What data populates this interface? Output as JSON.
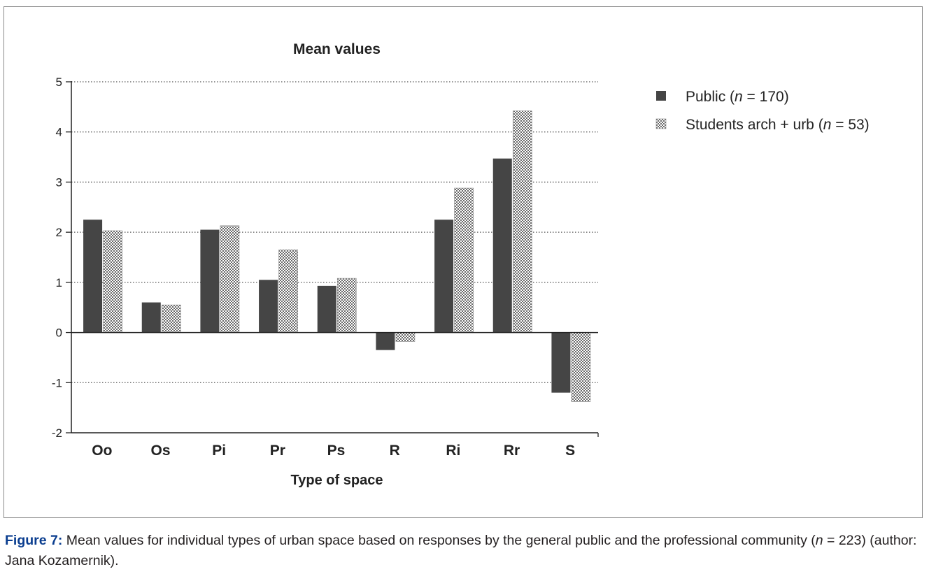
{
  "chart_data": {
    "type": "bar",
    "title": "Mean values",
    "xlabel": "Type of space",
    "ylabel": "",
    "categories": [
      "Oo",
      "Os",
      "Pi",
      "Pr",
      "Ps",
      "R",
      "Ri",
      "Rr",
      "S"
    ],
    "series": [
      {
        "name": "Public (n = 170)",
        "legend": {
          "prefix": "Public (",
          "n": "n",
          "suffix": " = 170)"
        },
        "pattern": "solid",
        "color": "#454545",
        "values": [
          2.25,
          0.6,
          2.05,
          1.05,
          0.93,
          -0.35,
          2.25,
          3.47,
          -1.2
        ]
      },
      {
        "name": "Students arch + urb (n = 53)",
        "legend": {
          "prefix": "Students arch + urb (",
          "n": "n",
          "suffix": " = 53)"
        },
        "pattern": "checker",
        "color": "#9a9a9a",
        "values": [
          2.03,
          0.55,
          2.13,
          1.65,
          1.08,
          -0.18,
          2.88,
          4.42,
          -1.38
        ]
      }
    ],
    "ylim": [
      -2,
      5
    ],
    "yticks": [
      5,
      4,
      3,
      2,
      1,
      0,
      -1,
      -2
    ],
    "grid": "dotted horizontal",
    "legend_position": "right"
  },
  "caption": {
    "label": "Figure 7:",
    "text_before_n": " Mean values for individual types of urban space based on responses by the general public and the professional community (",
    "n": "n",
    "text_after_n": " = 223) (author: Jana Kozamernik)."
  }
}
